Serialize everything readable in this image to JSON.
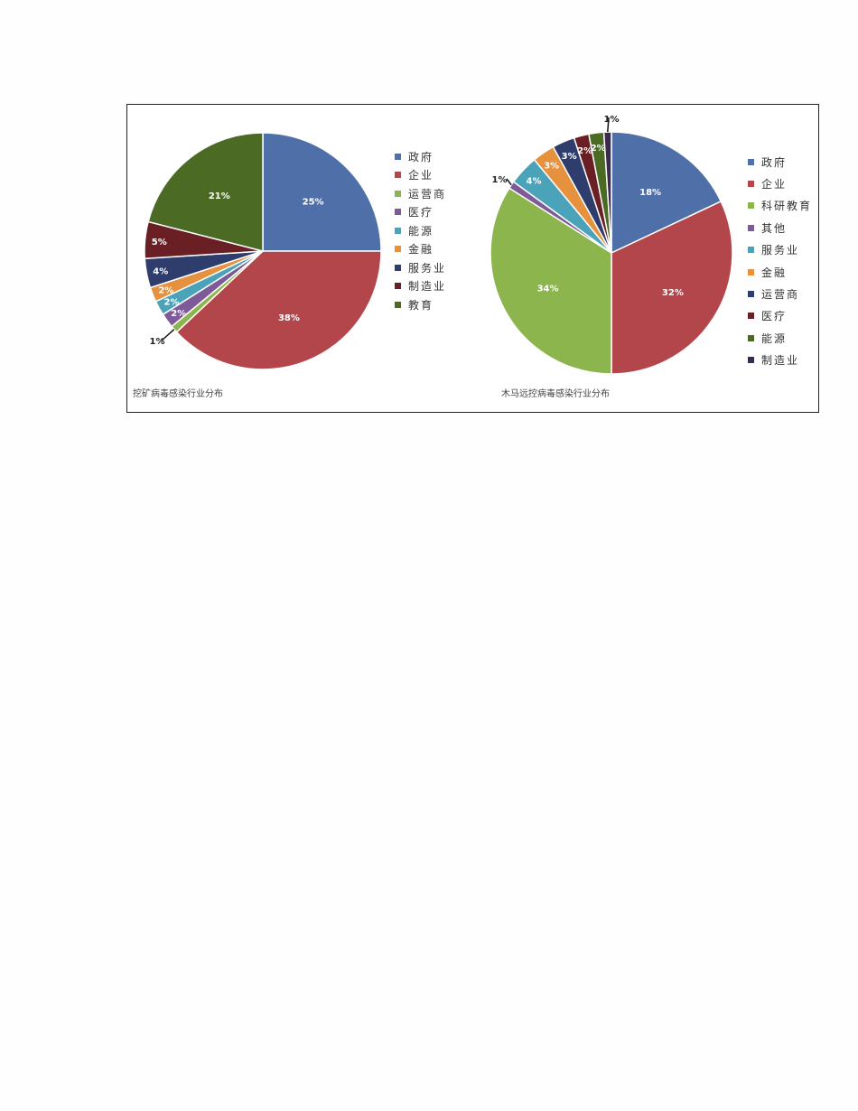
{
  "chart_data": [
    {
      "type": "pie",
      "title": "挖矿病毒感染行业分布",
      "slices": [
        {
          "label": "政府",
          "value": 25,
          "color": "#4f6fa8",
          "label_text": "25%"
        },
        {
          "label": "企业",
          "value": 38,
          "color": "#b2464a",
          "label_text": "38%"
        },
        {
          "label": "运营商",
          "value": 1,
          "color": "#8db54e",
          "label_text": "1%"
        },
        {
          "label": "医疗",
          "value": 2,
          "color": "#7e5a98",
          "label_text": "2%"
        },
        {
          "label": "能源",
          "value": 2,
          "color": "#4aa3b8",
          "label_text": "2%"
        },
        {
          "label": "金融",
          "value": 2,
          "color": "#e5913d",
          "label_text": "2%"
        },
        {
          "label": "服务业",
          "value": 4,
          "color": "#2f3d6c",
          "label_text": "4%"
        },
        {
          "label": "制造业",
          "value": 5,
          "color": "#6a1f24",
          "label_text": "5%"
        },
        {
          "label": "教育",
          "value": 21,
          "color": "#4b6a24",
          "label_text": "21%"
        }
      ],
      "legend_position": "right"
    },
    {
      "type": "pie",
      "title": "木马远控病毒感染行业分布",
      "slices": [
        {
          "label": "政府",
          "value": 18,
          "color": "#4f6fa8",
          "label_text": "18%"
        },
        {
          "label": "企业",
          "value": 32,
          "color": "#b2464a",
          "label_text": "32%"
        },
        {
          "label": "科研教育",
          "value": 34,
          "color": "#8db54e",
          "label_text": "34%"
        },
        {
          "label": "其他",
          "value": 1,
          "color": "#7e5a98",
          "label_text": "1%"
        },
        {
          "label": "服务业",
          "value": 4,
          "color": "#4aa3b8",
          "label_text": "4%"
        },
        {
          "label": "金融",
          "value": 3,
          "color": "#e5913d",
          "label_text": "3%"
        },
        {
          "label": "运营商",
          "value": 3,
          "color": "#2f3d6c",
          "label_text": "3%"
        },
        {
          "label": "医疗",
          "value": 2,
          "color": "#6a1f24",
          "label_text": "2%"
        },
        {
          "label": "能源",
          "value": 2,
          "color": "#4b6a24",
          "label_text": "2%"
        },
        {
          "label": "制造业",
          "value": 1,
          "color": "#3b2a4e",
          "label_text": "1%"
        }
      ],
      "legend_position": "right"
    }
  ]
}
